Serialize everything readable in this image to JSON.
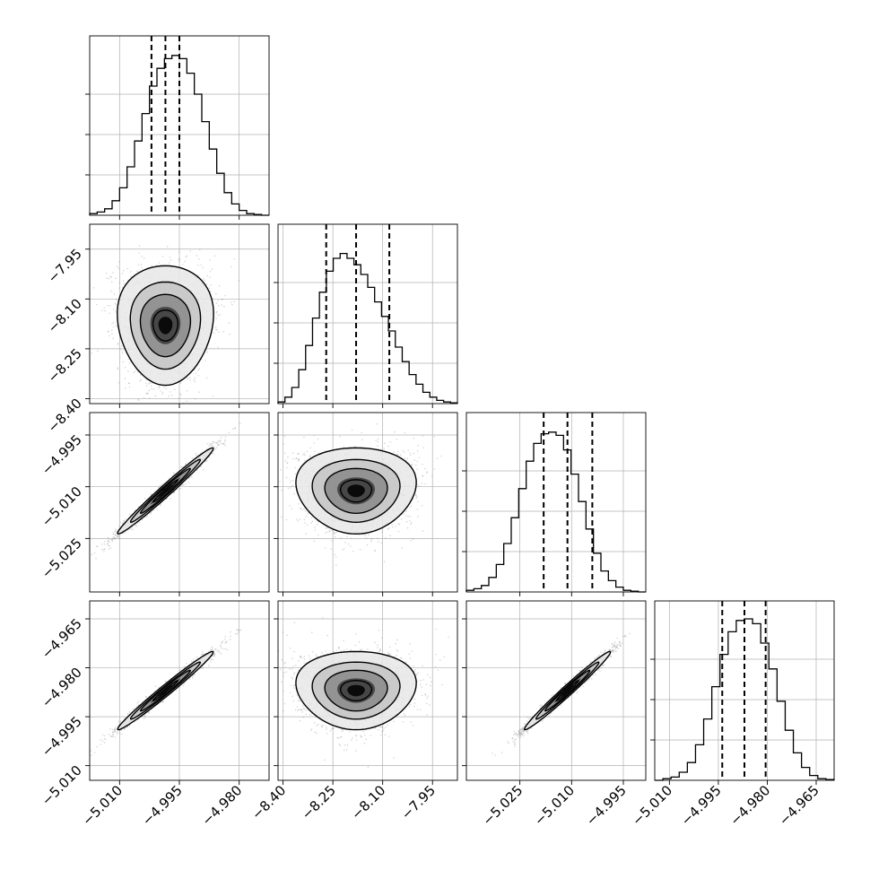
{
  "chart_data": {
    "type": "corner",
    "title": "",
    "grid": true,
    "colors": {
      "line": "#000000",
      "grid": "#b0b0b0",
      "density_max": "#000000",
      "scatter": "#8c8c8c"
    },
    "parameters": [
      {
        "index": 0,
        "range": [
          -5.0175,
          -4.9725
        ],
        "ticks": [
          "−5.010",
          "−4.995",
          "−4.980"
        ],
        "tick_values": [
          -5.01,
          -4.995,
          -4.98
        ],
        "quantiles": [
          -5.002,
          -4.9985,
          -4.995
        ]
      },
      {
        "index": 1,
        "range": [
          -8.415,
          -7.875
        ],
        "ticks": [
          "−8.40",
          "−8.25",
          "−8.10",
          "−7.95"
        ],
        "tick_values": [
          -8.4,
          -8.25,
          -8.1,
          -7.95
        ],
        "quantiles": [
          -8.27,
          -8.18,
          -8.08
        ]
      },
      {
        "index": 2,
        "range": [
          -5.0405,
          -4.9885
        ],
        "ticks": [
          "−5.025",
          "−5.010",
          "−4.995"
        ],
        "tick_values": [
          -5.025,
          -5.01,
          -4.995
        ],
        "quantiles": [
          -5.0181,
          -5.0112,
          -5.004
        ]
      },
      {
        "index": 3,
        "range": [
          -5.0145,
          -4.9595
        ],
        "ticks": [
          "−5.010",
          "−4.995",
          "−4.980",
          "−4.965"
        ],
        "tick_values": [
          -5.01,
          -4.995,
          -4.98,
          -4.965
        ],
        "quantiles": [
          -4.9938,
          -4.987,
          -4.9805
        ]
      }
    ],
    "histograms": [
      [
        0.01,
        0.02,
        0.04,
        0.09,
        0.17,
        0.3,
        0.46,
        0.63,
        0.8,
        0.91,
        0.97,
        0.99,
        0.97,
        0.88,
        0.75,
        0.58,
        0.41,
        0.26,
        0.14,
        0.07,
        0.03,
        0.01,
        0.005,
        0.0
      ],
      [
        0.01,
        0.04,
        0.1,
        0.21,
        0.36,
        0.53,
        0.69,
        0.82,
        0.9,
        0.93,
        0.9,
        0.86,
        0.8,
        0.72,
        0.63,
        0.54,
        0.45,
        0.35,
        0.26,
        0.18,
        0.12,
        0.07,
        0.04,
        0.02,
        0.01,
        0.005
      ],
      [
        0.01,
        0.02,
        0.04,
        0.09,
        0.17,
        0.3,
        0.46,
        0.64,
        0.81,
        0.92,
        0.98,
        0.99,
        0.97,
        0.88,
        0.73,
        0.56,
        0.39,
        0.24,
        0.13,
        0.07,
        0.03,
        0.01,
        0.005,
        0.0
      ],
      [
        0.0,
        0.01,
        0.02,
        0.05,
        0.11,
        0.22,
        0.38,
        0.58,
        0.78,
        0.92,
        0.99,
        1.0,
        0.97,
        0.85,
        0.69,
        0.49,
        0.31,
        0.17,
        0.08,
        0.03,
        0.01,
        0.005
      ]
    ],
    "pairs": [
      {
        "x": 0,
        "y": 1,
        "mean": [
          -4.9985,
          -8.18
        ],
        "sd": [
          0.005,
          0.075
        ],
        "rho": 0.0,
        "skew": 0.35
      },
      {
        "x": 0,
        "y": 2,
        "mean": [
          -4.9985,
          -5.0112
        ],
        "sd": [
          0.005,
          0.0052
        ],
        "rho": 0.985,
        "skew": 0.0
      },
      {
        "x": 1,
        "y": 2,
        "mean": [
          -8.18,
          -5.0112
        ],
        "sd": [
          0.075,
          0.0052
        ],
        "rho": 0.0,
        "skew": 0.35
      },
      {
        "x": 0,
        "y": 3,
        "mean": [
          -4.9985,
          -4.987
        ],
        "sd": [
          0.005,
          0.005
        ],
        "rho": 0.985,
        "skew": 0.0
      },
      {
        "x": 1,
        "y": 3,
        "mean": [
          -8.18,
          -4.987
        ],
        "sd": [
          0.075,
          0.005
        ],
        "rho": 0.0,
        "skew": 0.35
      },
      {
        "x": 2,
        "y": 3,
        "mean": [
          -5.0112,
          -4.987
        ],
        "sd": [
          0.0052,
          0.005
        ],
        "rho": 0.985,
        "skew": 0.0
      }
    ]
  }
}
